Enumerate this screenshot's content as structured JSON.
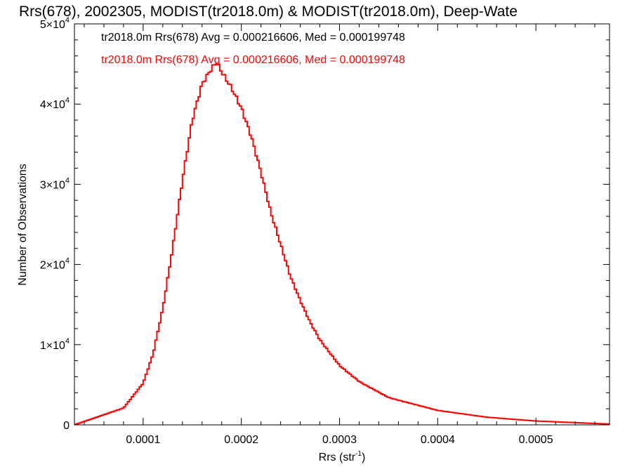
{
  "chart_data": {
    "type": "histogram",
    "title": "Rrs(678), 2002305, MODIST(tr2018.0m) & MODIST(tr2018.0m), Deep-Wate",
    "xlabel_main": "Rrs (str",
    "xlabel_sup": "-1",
    "xlabel_close": ")",
    "ylabel": "Number of Observations",
    "xlim": [
      3e-05,
      0.000575
    ],
    "ylim": [
      0,
      50000
    ],
    "x_ticks": [
      {
        "value": 0.0001,
        "label": "0.0001"
      },
      {
        "value": 0.0002,
        "label": "0.0002"
      },
      {
        "value": 0.0003,
        "label": "0.0003"
      },
      {
        "value": 0.0004,
        "label": "0.0004"
      },
      {
        "value": 0.0005,
        "label": "0.0005"
      }
    ],
    "y_ticks": [
      {
        "value": 0,
        "mantissa": "0",
        "exponent": ""
      },
      {
        "value": 10000,
        "mantissa": "1×10",
        "exponent": "4"
      },
      {
        "value": 20000,
        "mantissa": "2×10",
        "exponent": "4"
      },
      {
        "value": 30000,
        "mantissa": "3×10",
        "exponent": "4"
      },
      {
        "value": 40000,
        "mantissa": "4×10",
        "exponent": "4"
      },
      {
        "value": 50000,
        "mantissa": "5×10",
        "exponent": "4"
      }
    ],
    "legend": [
      {
        "text": "tr2018.0m Rrs(678) Avg = 0.000216606, Med = 0.000199748",
        "color": "#000000"
      },
      {
        "text": "tr2018.0m Rrs(678) Avg = 0.000216606, Med = 0.000199748",
        "color": "#ff0000"
      }
    ],
    "series": [
      {
        "color": "#ff0000",
        "bin_width": 2e-06,
        "x": [
          3e-05,
          8e-05,
          0.0001,
          0.00011,
          0.00012,
          0.00013,
          0.00014,
          0.00015,
          0.00016,
          0.00017,
          0.000175,
          0.00018,
          0.00019,
          0.0002,
          0.00021,
          0.00022,
          0.00023,
          0.00024,
          0.00025,
          0.00026,
          0.00027,
          0.00028,
          0.0003,
          0.00032,
          0.00035,
          0.0004,
          0.00045,
          0.0005,
          0.000575
        ],
        "y": [
          0,
          2100,
          5200,
          8800,
          14500,
          22000,
          30500,
          38000,
          42500,
          44500,
          45200,
          44000,
          42000,
          39500,
          36000,
          31500,
          26500,
          22500,
          18500,
          15500,
          12800,
          10600,
          7400,
          5400,
          3400,
          1800,
          950,
          480,
          100
        ]
      }
    ]
  }
}
